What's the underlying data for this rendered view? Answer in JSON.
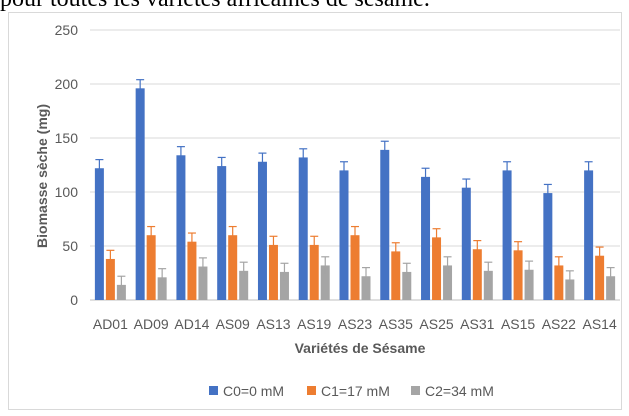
{
  "caption": "pour toutes les variétés africaines de sésame.",
  "chart_data": {
    "type": "bar",
    "title": "",
    "xlabel": "Variétés de Sésame",
    "ylabel": "Biomasse sèche (mg)",
    "ylim": [
      0,
      250
    ],
    "yticks": [
      0,
      50,
      100,
      150,
      200,
      250
    ],
    "grid": true,
    "legend_position": "bottom",
    "categories": [
      "AD01",
      "AD09",
      "AD14",
      "AS09",
      "AS13",
      "AS19",
      "AS23",
      "AS35",
      "AS25",
      "AS31",
      "AS15",
      "AS22",
      "AS14"
    ],
    "series": [
      {
        "name": "C0=0 mM",
        "color": "#4472C4",
        "values": [
          122,
          196,
          134,
          124,
          128,
          132,
          120,
          139,
          114,
          104,
          120,
          99,
          120
        ],
        "errors": [
          8,
          8,
          8,
          8,
          8,
          8,
          8,
          8,
          8,
          8,
          8,
          8,
          8
        ]
      },
      {
        "name": "C1=17 mM",
        "color": "#ED7D31",
        "values": [
          38,
          60,
          54,
          60,
          51,
          51,
          60,
          45,
          58,
          47,
          46,
          32,
          41
        ],
        "errors": [
          8,
          8,
          8,
          8,
          8,
          8,
          8,
          8,
          8,
          8,
          8,
          8,
          8
        ]
      },
      {
        "name": "C2=34 mM",
        "color": "#A5A5A5",
        "values": [
          14,
          21,
          31,
          27,
          26,
          32,
          22,
          26,
          32,
          27,
          28,
          19,
          22
        ],
        "errors": [
          8,
          8,
          8,
          8,
          8,
          8,
          8,
          8,
          8,
          8,
          8,
          8,
          8
        ]
      }
    ]
  }
}
